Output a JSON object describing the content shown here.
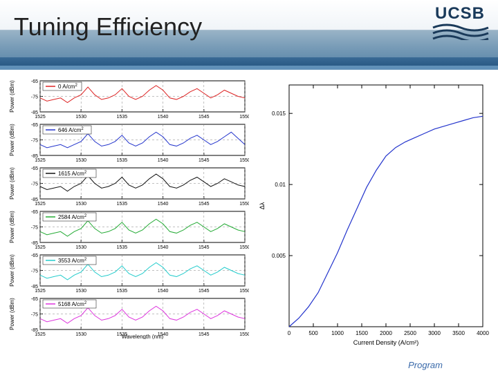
{
  "header": {
    "title": "Tuning Efficiency",
    "logo_text": "UCSB",
    "logo_color": "#1a3a5a",
    "bg_gradient": [
      "#ffffff",
      "#f0f4f8",
      "#9ab4c7",
      "#5a85a8"
    ]
  },
  "footer": {
    "text": "Program",
    "color": "#3a6aaa"
  },
  "left_panel": {
    "xmin": 1525,
    "xmax": 1550,
    "xticks": [
      1525,
      1530,
      1535,
      1540,
      1545,
      1550
    ],
    "ymin": -85,
    "ymax": -65,
    "yticks": [
      -85,
      -75,
      -65
    ],
    "xlabel": "Wavelength (nm)",
    "ylabel": "Power (dBm)",
    "axis_color": "#000000",
    "grid_color": "#808080",
    "label_fontsize": 8,
    "tick_fontsize": 7,
    "spectra": [
      {
        "label": "0 A/cm",
        "sup": "2",
        "color": "#dd2222",
        "y": [
          -76,
          -78,
          -77,
          -76,
          -79,
          -76,
          -74,
          -69,
          -74,
          -77,
          -76,
          -74,
          -70,
          -75,
          -77,
          -75,
          -71,
          -68,
          -71,
          -76,
          -77,
          -75,
          -72,
          -70,
          -73,
          -76,
          -74,
          -71,
          -73,
          -75,
          -76
        ]
      },
      {
        "label": "646 A/cm",
        "sup": "2",
        "color": "#2233cc",
        "y": [
          -78,
          -80,
          -79,
          -78,
          -80,
          -78,
          -76,
          -71,
          -76,
          -79,
          -78,
          -76,
          -72,
          -77,
          -79,
          -77,
          -73,
          -70,
          -73,
          -78,
          -79,
          -77,
          -74,
          -72,
          -75,
          -78,
          -76,
          -73,
          -70,
          -74,
          -78
        ]
      },
      {
        "label": "1615 A/cm",
        "sup": "2",
        "color": "#111111",
        "y": [
          -77,
          -79,
          -78,
          -77,
          -80,
          -77,
          -75,
          -70,
          -75,
          -78,
          -77,
          -75,
          -71,
          -76,
          -78,
          -76,
          -72,
          -69,
          -72,
          -77,
          -78,
          -76,
          -73,
          -71,
          -74,
          -77,
          -75,
          -72,
          -74,
          -76,
          -77
        ]
      },
      {
        "label": "2584 A/cm",
        "sup": "2",
        "color": "#22aa33",
        "y": [
          -78,
          -80,
          -79,
          -78,
          -81,
          -78,
          -76,
          -71,
          -76,
          -79,
          -78,
          -76,
          -72,
          -77,
          -79,
          -77,
          -73,
          -70,
          -73,
          -78,
          -79,
          -77,
          -74,
          -72,
          -75,
          -78,
          -76,
          -73,
          -75,
          -77,
          -78
        ]
      },
      {
        "label": "3553 A/cm",
        "sup": "2",
        "color": "#22cccc",
        "y": [
          -78,
          -80,
          -79,
          -78,
          -81,
          -78,
          -76,
          -71,
          -76,
          -79,
          -78,
          -76,
          -72,
          -77,
          -79,
          -77,
          -73,
          -70,
          -73,
          -78,
          -79,
          -77,
          -74,
          -72,
          -75,
          -78,
          -76,
          -73,
          -75,
          -77,
          -78
        ]
      },
      {
        "label": "5168 A/cm",
        "sup": "2",
        "color": "#dd33dd",
        "y": [
          -78,
          -80,
          -79,
          -78,
          -81,
          -78,
          -76,
          -71,
          -76,
          -79,
          -78,
          -76,
          -72,
          -77,
          -79,
          -77,
          -73,
          -70,
          -73,
          -78,
          -79,
          -77,
          -74,
          -72,
          -75,
          -78,
          -76,
          -73,
          -75,
          -77,
          -78
        ]
      }
    ]
  },
  "right_chart": {
    "type": "line",
    "xmin": 0,
    "xmax": 4000,
    "xticks": [
      0,
      500,
      1000,
      1500,
      2000,
      2500,
      3000,
      3500,
      4000
    ],
    "ymin": 0,
    "ymax": 0.017,
    "yticks": [
      0.005,
      0.01,
      0.015
    ],
    "xlabel": "Current Density (A/cm²)",
    "ylabel": "Δλ",
    "axis_color": "#000000",
    "line_color": "#2233cc",
    "line_width": 1.2,
    "tick_fontsize": 8,
    "label_fontsize": 9,
    "data": [
      {
        "x": 0,
        "y": 0.0
      },
      {
        "x": 200,
        "y": 0.0006
      },
      {
        "x": 400,
        "y": 0.0014
      },
      {
        "x": 600,
        "y": 0.0024
      },
      {
        "x": 800,
        "y": 0.0038
      },
      {
        "x": 1000,
        "y": 0.0052
      },
      {
        "x": 1200,
        "y": 0.0068
      },
      {
        "x": 1400,
        "y": 0.0083
      },
      {
        "x": 1600,
        "y": 0.0098
      },
      {
        "x": 1800,
        "y": 0.011
      },
      {
        "x": 2000,
        "y": 0.012
      },
      {
        "x": 2200,
        "y": 0.0126
      },
      {
        "x": 2400,
        "y": 0.013
      },
      {
        "x": 2600,
        "y": 0.0133
      },
      {
        "x": 2800,
        "y": 0.0136
      },
      {
        "x": 3000,
        "y": 0.0139
      },
      {
        "x": 3200,
        "y": 0.0141
      },
      {
        "x": 3400,
        "y": 0.0143
      },
      {
        "x": 3600,
        "y": 0.0145
      },
      {
        "x": 3800,
        "y": 0.0147
      },
      {
        "x": 4000,
        "y": 0.0148
      }
    ]
  }
}
